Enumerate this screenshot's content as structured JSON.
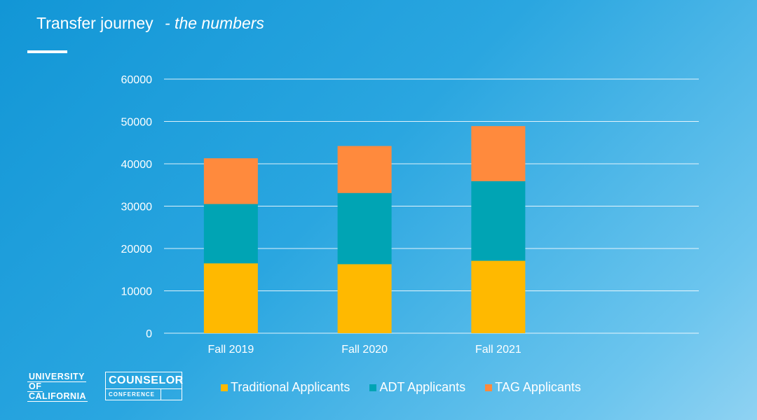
{
  "slide": {
    "title": "Transfer journey",
    "subtitle": "- the numbers"
  },
  "logos": {
    "uc": [
      "UNIVERSITY",
      "OF",
      "CALIFORNIA"
    ],
    "counselor_top": "COUNSELOR",
    "counselor_bottom": "CONFERENCE"
  },
  "colors": {
    "traditional": "#FFB900",
    "adt": "#00A4B4",
    "tag": "#FF8A3D",
    "grid": "#ffffff"
  },
  "chart_data": {
    "type": "bar",
    "stacked": true,
    "categories": [
      "Fall 2019",
      "Fall 2020",
      "Fall 2021"
    ],
    "series": [
      {
        "name": "Traditional Applicants",
        "values": [
          16500,
          16300,
          17100
        ]
      },
      {
        "name": "ADT Applicants",
        "values": [
          14000,
          16800,
          18800
        ]
      },
      {
        "name": "TAG Applicants",
        "values": [
          10800,
          11100,
          13000
        ]
      }
    ],
    "y_ticks": [
      "0",
      "10000",
      "20000",
      "30000",
      "40000",
      "50000",
      "60000"
    ],
    "ylim": [
      0,
      60000
    ],
    "grid": true,
    "legend_position": "bottom"
  }
}
